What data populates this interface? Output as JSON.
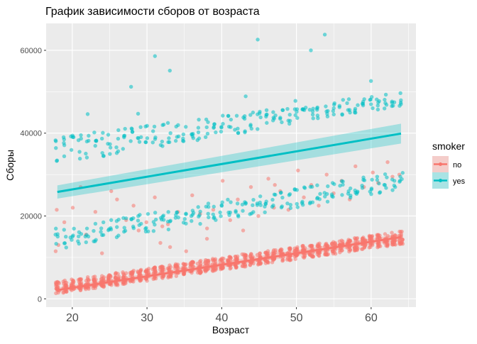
{
  "chart_data": {
    "type": "scatter",
    "title": "График зависимости сборов от возраста",
    "xlabel": "Возраст",
    "ylabel": "Сборы",
    "xlim": [
      16.5,
      66
    ],
    "ylim": [
      -2000,
      66500
    ],
    "x_ticks": [
      20,
      30,
      40,
      50,
      60
    ],
    "y_ticks": [
      0,
      20000,
      40000,
      60000
    ],
    "x_tick_labels": [
      "20",
      "30",
      "40",
      "50",
      "60"
    ],
    "y_tick_labels": [
      "0",
      "20000",
      "40000",
      "60000"
    ],
    "grid": true,
    "legend": {
      "title": "smoker",
      "position": "right",
      "items": [
        {
          "label": "no",
          "color": "#F8766D"
        },
        {
          "label": "yes",
          "color": "#00BFC4"
        }
      ]
    },
    "series": [
      {
        "name": "no",
        "color": "#F8766D",
        "cloud_min_x": 18,
        "cloud_max_x": 64,
        "base_band": {
          "low_at_18": 1200,
          "high_at_18": 4200,
          "low_at_64": 13200,
          "high_at_64": 16300
        },
        "upper_points": [
          [
            18,
            11500
          ],
          [
            18,
            13000
          ],
          [
            18,
            21500
          ],
          [
            19,
            18500
          ],
          [
            20,
            22000
          ],
          [
            21,
            27000
          ],
          [
            22,
            15500
          ],
          [
            23,
            21000
          ],
          [
            24,
            11000
          ],
          [
            25,
            26000
          ],
          [
            26,
            24000
          ],
          [
            27,
            19000
          ],
          [
            28,
            22500
          ],
          [
            29,
            16500
          ],
          [
            30,
            18500
          ],
          [
            31,
            24500
          ],
          [
            32,
            13500
          ],
          [
            33,
            18000
          ],
          [
            34,
            21000
          ],
          [
            35,
            11500
          ],
          [
            36,
            25000
          ],
          [
            37,
            20500
          ],
          [
            38,
            14500
          ],
          [
            39,
            21500
          ],
          [
            40,
            28500
          ],
          [
            41,
            19000
          ],
          [
            42,
            24000
          ],
          [
            43,
            16500
          ],
          [
            44,
            27000
          ],
          [
            45,
            20000
          ],
          [
            46,
            29000
          ],
          [
            47,
            22000
          ],
          [
            48,
            26000
          ],
          [
            49,
            21500
          ],
          [
            50,
            31000
          ],
          [
            51,
            24500
          ],
          [
            52,
            27500
          ],
          [
            53,
            22500
          ],
          [
            54,
            30000
          ],
          [
            55,
            25500
          ],
          [
            56,
            28500
          ],
          [
            57,
            24000
          ],
          [
            58,
            32000
          ],
          [
            59,
            27000
          ],
          [
            60,
            30500
          ],
          [
            61,
            28000
          ],
          [
            62,
            33000
          ],
          [
            63,
            29500
          ],
          [
            64,
            30000
          ],
          [
            33,
            12500
          ],
          [
            32,
            17500
          ],
          [
            47,
            27500
          ],
          [
            38,
            17000
          ]
        ],
        "trend": {
          "x": [
            18,
            64
          ],
          "y": [
            2100,
            14900
          ],
          "ci_low": [
            1500,
            14200
          ],
          "ci_high": [
            2700,
            15700
          ]
        }
      },
      {
        "name": "yes",
        "color": "#00BFC4",
        "cloud_min_x": 18,
        "cloud_max_x": 64,
        "low_band": {
          "low_at_18": 12000,
          "high_at_18": 17000,
          "low_at_64": 26500,
          "high_at_64": 31000
        },
        "high_band": {
          "low_at_18": 32500,
          "high_at_18": 39000,
          "low_at_64": 46500,
          "high_at_64": 50000
        },
        "outliers": [
          [
            45,
            62600
          ],
          [
            52,
            60000
          ],
          [
            54,
            63800
          ],
          [
            31,
            58600
          ],
          [
            33,
            55100
          ],
          [
            28,
            51200
          ],
          [
            60,
            52600
          ],
          [
            22,
            44600
          ],
          [
            29,
            44700
          ],
          [
            43,
            48900
          ],
          [
            50,
            47800
          ]
        ],
        "trend": {
          "x": [
            18,
            64
          ],
          "y": [
            25800,
            39900
          ],
          "ci_low": [
            24200,
            37500
          ],
          "ci_high": [
            27400,
            42300
          ]
        }
      }
    ]
  }
}
